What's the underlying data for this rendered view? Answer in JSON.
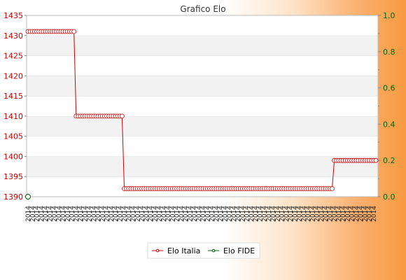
{
  "chart_data": {
    "type": "line",
    "title": "Grafico Elo",
    "xlabel": "",
    "ylabel": "",
    "ylim_left": [
      1390,
      1435
    ],
    "ylim_right": [
      0.0,
      1.0
    ],
    "yticks_left": [
      "1390",
      "1395",
      "1400",
      "1405",
      "1410",
      "1415",
      "1420",
      "1425",
      "1430",
      "1435"
    ],
    "yticks_right": [
      "0.0",
      "0.2",
      "0.4",
      "0.6",
      "0.8",
      "1.0"
    ],
    "grid": "alternating horizontal bands",
    "legend_placement": "bottom",
    "x_count": 160,
    "x_tick_sample": "2014",
    "series": [
      {
        "name": "Elo Italia",
        "axis": "left",
        "color": "#cc0000",
        "segments": [
          {
            "from": 0,
            "to": 21,
            "value": 1431
          },
          {
            "from": 22,
            "to": 43,
            "value": 1410
          },
          {
            "from": 44,
            "to": 139,
            "value": 1392
          },
          {
            "from": 140,
            "to": 159,
            "value": 1399
          }
        ]
      },
      {
        "name": "Elo FIDE",
        "axis": "right",
        "color": "#006600",
        "points": [
          {
            "index": 0,
            "value": 0.0
          }
        ]
      }
    ]
  }
}
